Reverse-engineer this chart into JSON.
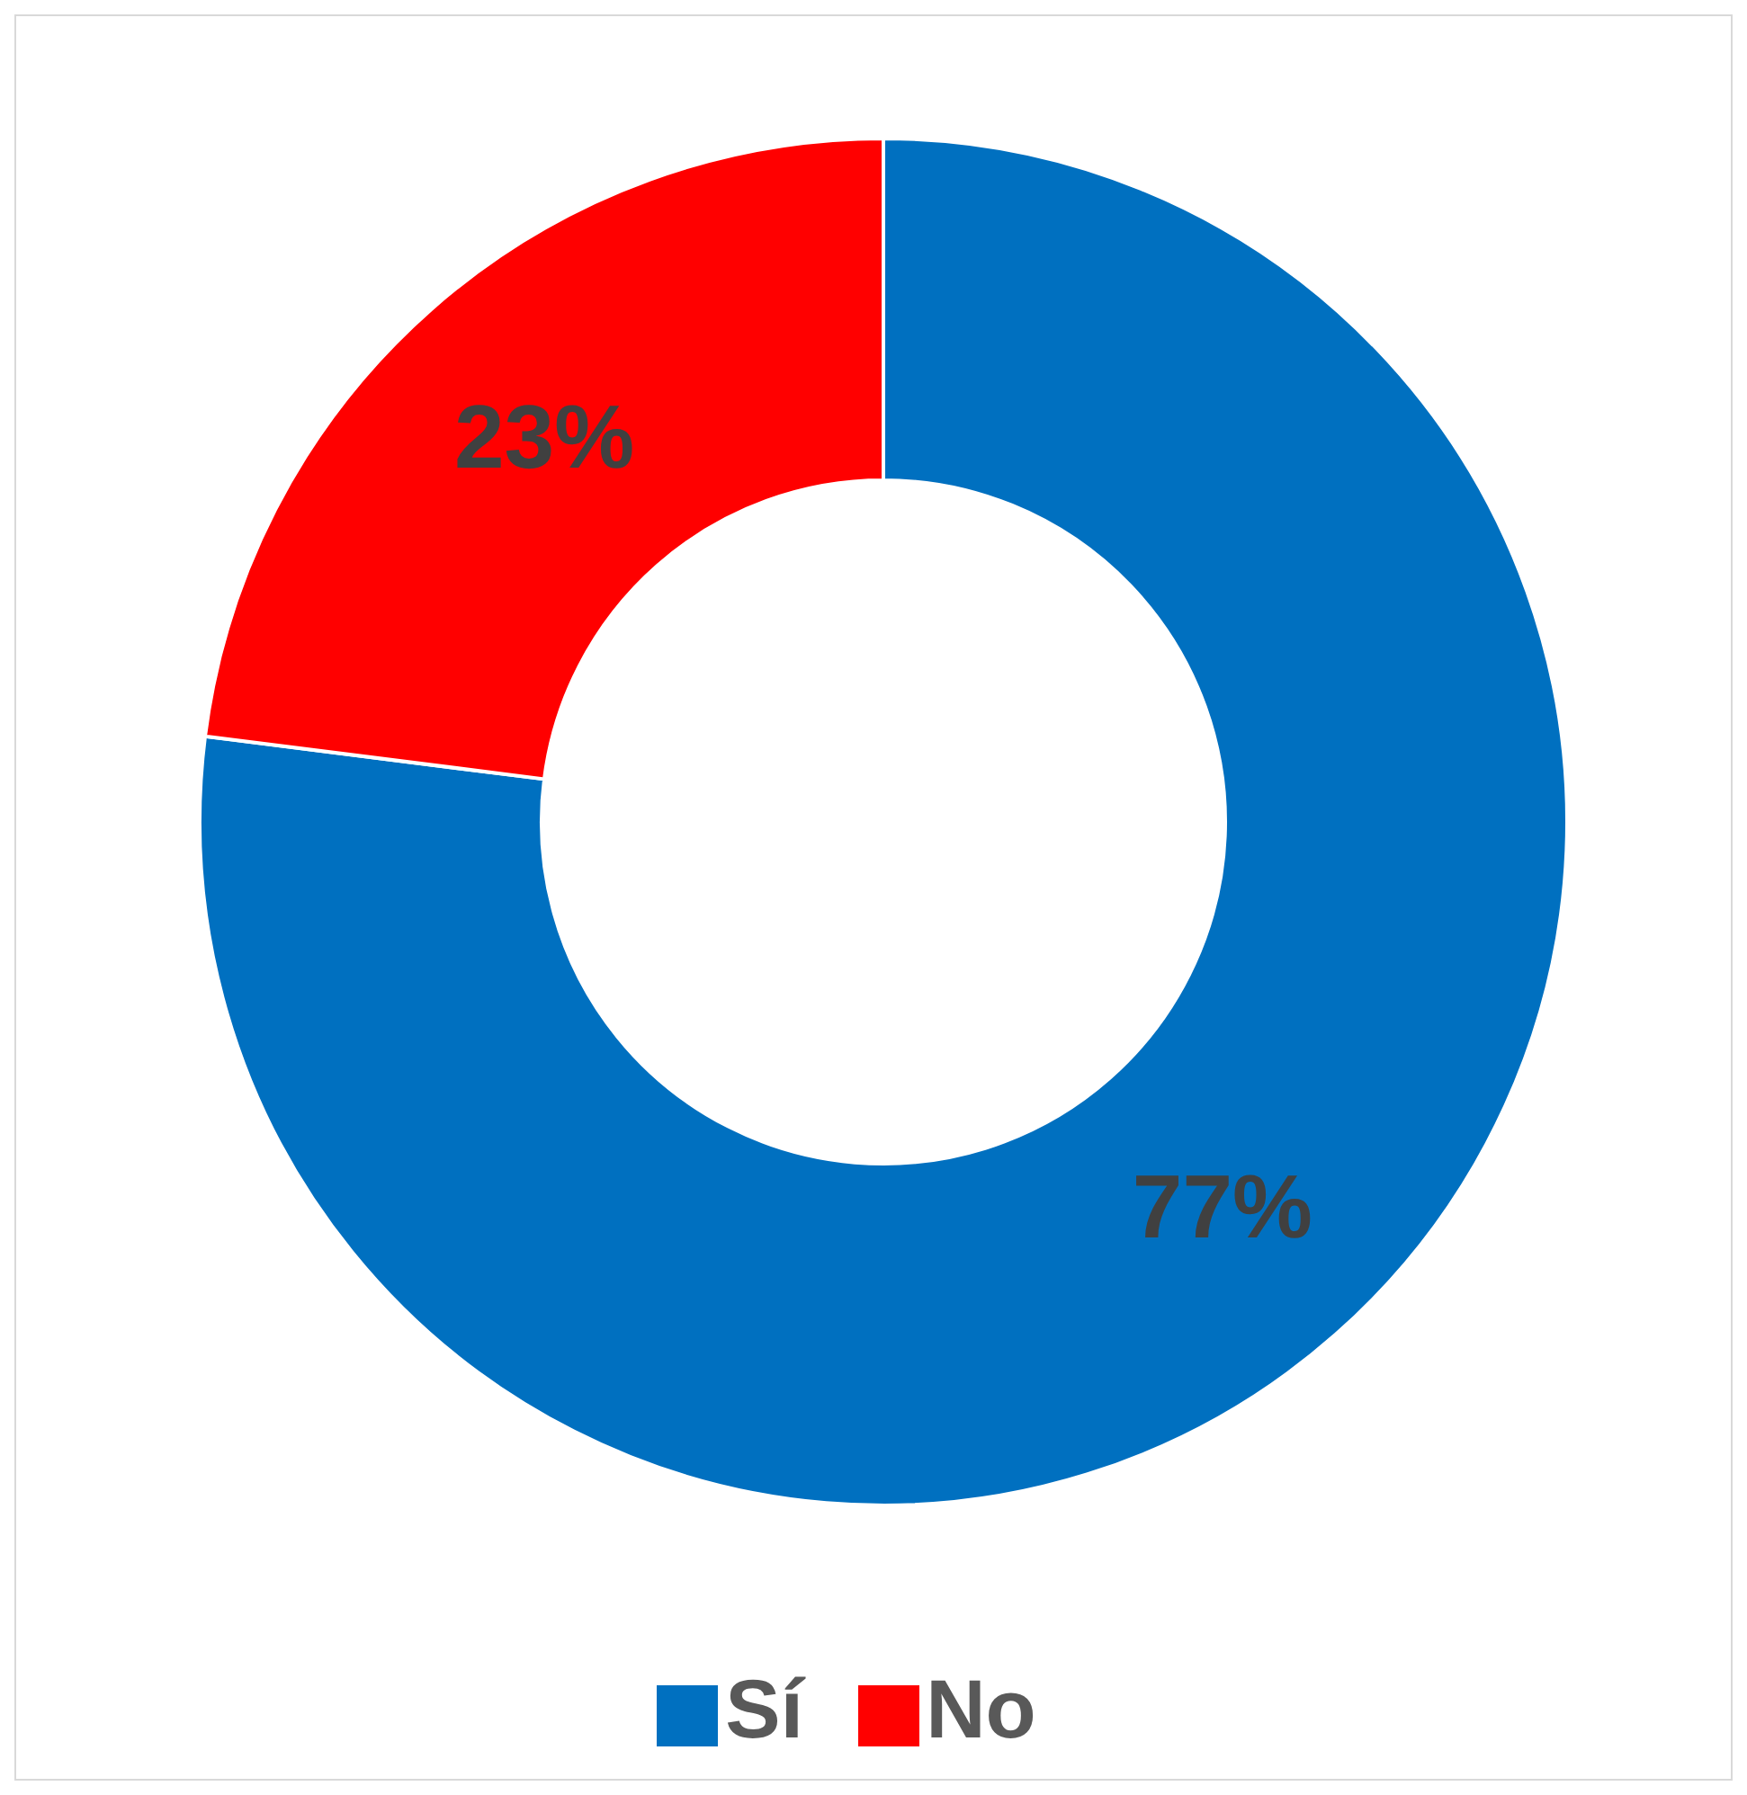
{
  "chart_data": {
    "type": "donut",
    "categories": [
      "Sí",
      "No"
    ],
    "values": [
      77,
      23
    ],
    "colors": [
      "#0070c0",
      "#ff0000"
    ],
    "value_labels": [
      "77%",
      "23%"
    ],
    "legend": "bottom"
  }
}
